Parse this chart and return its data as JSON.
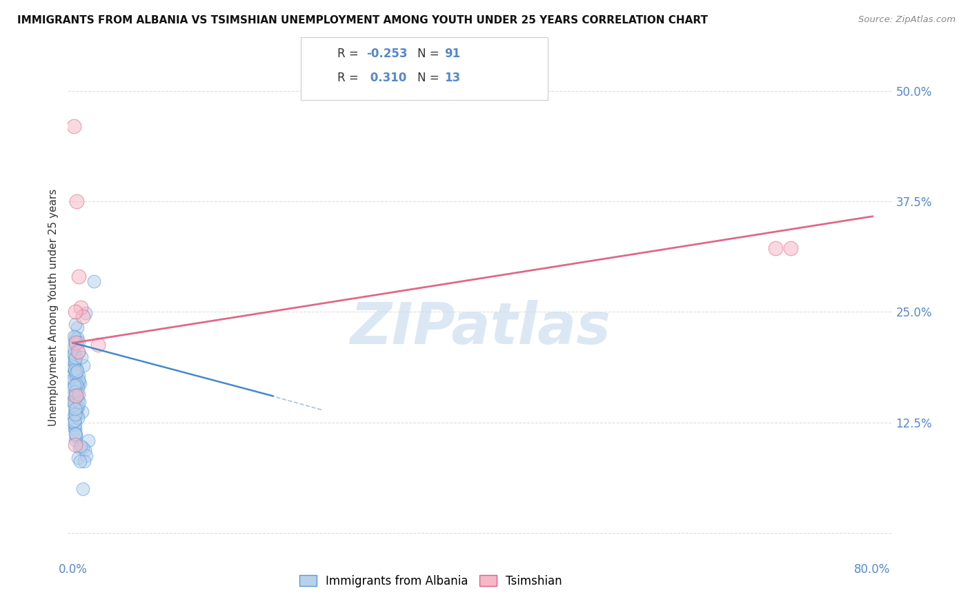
{
  "title": "IMMIGRANTS FROM ALBANIA VS TSIMSHIAN UNEMPLOYMENT AMONG YOUTH UNDER 25 YEARS CORRELATION CHART",
  "source": "Source: ZipAtlas.com",
  "ylabel": "Unemployment Among Youth under 25 years",
  "xlim": [
    -0.005,
    0.82
  ],
  "ylim": [
    -0.03,
    0.54
  ],
  "yticks": [
    0.0,
    0.125,
    0.25,
    0.375,
    0.5
  ],
  "ytick_labels": [
    "",
    "12.5%",
    "25.0%",
    "37.5%",
    "50.0%"
  ],
  "xtick_positions": [
    0.0,
    0.1,
    0.2,
    0.3,
    0.4,
    0.5,
    0.6,
    0.7,
    0.8
  ],
  "xtick_labels": [
    "0.0%",
    "",
    "",
    "",
    "",
    "",
    "",
    "",
    "80.0%"
  ],
  "legend_r_albania": "-0.253",
  "legend_n_albania": "91",
  "legend_r_tsimshian": "0.310",
  "legend_n_tsimshian": "13",
  "albania_face_color": "#b8d0ea",
  "albania_edge_color": "#5599dd",
  "tsimshian_face_color": "#f5b8c8",
  "tsimshian_edge_color": "#e06080",
  "albania_line_color": "#4488cc",
  "tsimshian_line_color": "#e06888",
  "watermark_color": "#ccdff0",
  "background_color": "#ffffff",
  "grid_color": "#dddddd",
  "axis_label_color": "#5588cc",
  "title_color": "#111111",
  "source_color": "#888888",
  "legend_box_edge": "#cccccc",
  "albania_line_x": [
    0.0,
    0.2
  ],
  "albania_line_y": [
    0.215,
    0.155
  ],
  "tsimshian_line_x": [
    0.0,
    0.8
  ],
  "tsimshian_line_y": [
    0.215,
    0.358
  ]
}
